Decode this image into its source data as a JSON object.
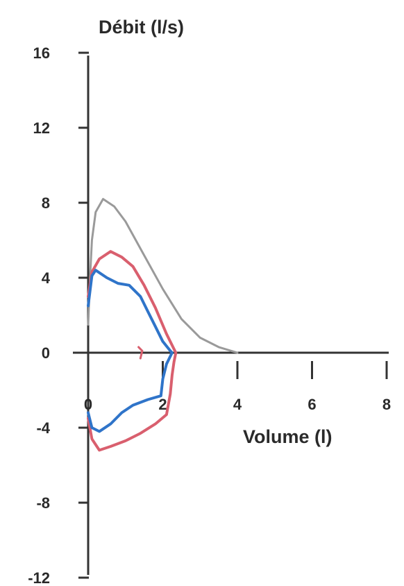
{
  "chart_data": {
    "type": "line",
    "title": "",
    "ylabel": "Débit (l/s)",
    "xlabel": "Volume (l)",
    "xlim": [
      0,
      8
    ],
    "ylim": [
      -12,
      16
    ],
    "grid": false,
    "legend": "none",
    "x_ticks": [
      "0",
      "2",
      "4",
      "6",
      "8"
    ],
    "y_ticks": [
      "16",
      "12",
      "8",
      "4",
      "0",
      "-4",
      "-8",
      "-12"
    ],
    "series": [
      {
        "color": "#9a9a9a",
        "points": [
          [
            0,
            1.5
          ],
          [
            0.05,
            4
          ],
          [
            0.1,
            6
          ],
          [
            0.2,
            7.5
          ],
          [
            0.4,
            8.2
          ],
          [
            0.7,
            7.8
          ],
          [
            1.0,
            7.0
          ],
          [
            1.5,
            5.2
          ],
          [
            2.0,
            3.4
          ],
          [
            2.5,
            1.8
          ],
          [
            3.0,
            0.8
          ],
          [
            3.5,
            0.3
          ],
          [
            4.0,
            0
          ]
        ]
      },
      {
        "color": "#d95f6e",
        "points": [
          [
            0,
            3
          ],
          [
            0.1,
            4.3
          ],
          [
            0.3,
            5.0
          ],
          [
            0.6,
            5.4
          ],
          [
            0.9,
            5.1
          ],
          [
            1.2,
            4.6
          ],
          [
            1.5,
            3.6
          ],
          [
            1.8,
            2.4
          ],
          [
            2.1,
            1.0
          ],
          [
            2.3,
            0.2
          ],
          [
            2.35,
            0
          ],
          [
            2.3,
            -0.5
          ],
          [
            2.25,
            -1.2
          ],
          [
            2.2,
            -2.2
          ],
          [
            2.1,
            -3.3
          ],
          [
            1.8,
            -3.8
          ],
          [
            1.4,
            -4.3
          ],
          [
            1.0,
            -4.7
          ],
          [
            0.6,
            -5.0
          ],
          [
            0.3,
            -5.2
          ],
          [
            0.1,
            -4.6
          ],
          [
            0,
            -3.5
          ]
        ]
      },
      {
        "color": "#2f74c9",
        "points": [
          [
            0,
            2.5
          ],
          [
            0.1,
            4.1
          ],
          [
            0.2,
            4.4
          ],
          [
            0.5,
            4.0
          ],
          [
            0.8,
            3.7
          ],
          [
            1.1,
            3.6
          ],
          [
            1.4,
            3.0
          ],
          [
            1.6,
            2.2
          ],
          [
            1.8,
            1.4
          ],
          [
            2.0,
            0.6
          ],
          [
            2.2,
            0.1
          ],
          [
            2.25,
            0
          ],
          [
            2.1,
            -0.6
          ],
          [
            2.0,
            -1.4
          ],
          [
            1.95,
            -2.3
          ],
          [
            1.6,
            -2.5
          ],
          [
            1.2,
            -2.8
          ],
          [
            0.9,
            -3.2
          ],
          [
            0.6,
            -3.8
          ],
          [
            0.3,
            -4.2
          ],
          [
            0.1,
            -4.0
          ],
          [
            0,
            -3.2
          ]
        ]
      }
    ],
    "annotations": [
      {
        "color": "#d95f6e",
        "points": [
          [
            1.35,
            0.3
          ],
          [
            1.45,
            0.1
          ],
          [
            1.4,
            -0.3
          ]
        ]
      }
    ]
  }
}
